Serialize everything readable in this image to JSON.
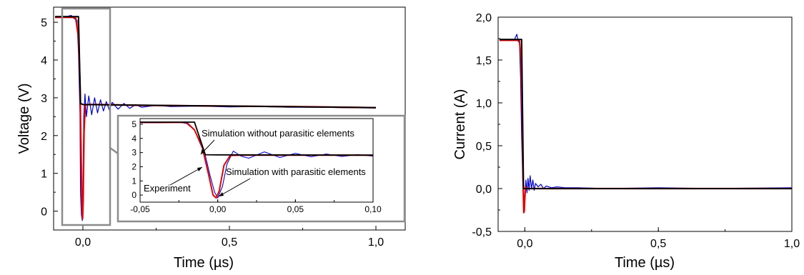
{
  "colors": {
    "experiment": "#0000cc",
    "sim_with": "#e00000",
    "sim_without": "#000000",
    "inset_frame": "#8c8c8c"
  },
  "chart_data": [
    {
      "type": "line",
      "xlabel": "Time (µs)",
      "ylabel": "Voltage (V)",
      "xlim": [
        -0.1,
        1.1
      ],
      "ylim": [
        -0.5,
        5.4
      ],
      "x_ticks": [
        {
          "v": 0,
          "label": "0,0"
        },
        {
          "v": 0.5,
          "label": "0,5"
        },
        {
          "v": 1.0,
          "label": "1,0"
        }
      ],
      "y_ticks": [
        {
          "v": 0,
          "label": "0"
        },
        {
          "v": 1,
          "label": "1"
        },
        {
          "v": 2,
          "label": "2"
        },
        {
          "v": 3,
          "label": "3"
        },
        {
          "v": 4,
          "label": "4"
        },
        {
          "v": 5,
          "label": "5"
        }
      ],
      "series": [
        {
          "key": "experiment",
          "x": [
            -0.095,
            -0.06,
            -0.04,
            -0.03,
            -0.02,
            -0.015,
            -0.01,
            -0.008,
            -0.005,
            -0.002,
            0.0,
            0.003,
            0.007,
            0.012,
            0.02,
            0.03,
            0.04,
            0.05,
            0.06,
            0.07,
            0.08,
            0.09,
            0.1,
            0.12,
            0.14,
            0.16,
            0.18,
            0.2,
            0.25,
            0.3,
            0.4,
            0.5,
            0.6,
            0.7,
            0.8,
            0.9,
            1.0
          ],
          "y": [
            5.12,
            5.14,
            5.18,
            5.1,
            5.05,
            4.2,
            2.6,
            0.5,
            -0.1,
            -0.25,
            0.4,
            2.5,
            3.1,
            2.5,
            3.05,
            2.55,
            3.0,
            2.6,
            2.95,
            2.65,
            2.9,
            2.68,
            2.88,
            2.7,
            2.85,
            2.72,
            2.82,
            2.75,
            2.8,
            2.77,
            2.78,
            2.76,
            2.77,
            2.75,
            2.75,
            2.74,
            2.73
          ]
        },
        {
          "key": "sim_with",
          "x": [
            -0.095,
            -0.025,
            -0.015,
            -0.01,
            -0.006,
            -0.003,
            -0.001,
            0.001,
            0.004,
            0.008,
            0.015,
            0.05,
            0.2,
            0.5,
            0.8,
            1.0
          ],
          "y": [
            5.13,
            5.13,
            4.6,
            3.4,
            1.5,
            0.0,
            -0.2,
            0.3,
            2.1,
            2.8,
            2.82,
            2.82,
            2.8,
            2.78,
            2.76,
            2.74
          ]
        },
        {
          "key": "sim_without",
          "x": [
            -0.095,
            -0.015,
            -0.008,
            0.0,
            0.5,
            1.0
          ],
          "y": [
            5.15,
            5.15,
            2.85,
            2.82,
            2.78,
            2.74
          ]
        }
      ],
      "inset": {
        "xlim": [
          -0.05,
          0.1
        ],
        "ylim": [
          -0.5,
          5.4
        ],
        "x_ticks": [
          {
            "v": -0.05,
            "label": "-0,05"
          },
          {
            "v": 0.0,
            "label": "0,00"
          },
          {
            "v": 0.05,
            "label": "0,05"
          },
          {
            "v": 0.1,
            "label": "0,10"
          }
        ],
        "y_ticks": [
          {
            "v": 0,
            "label": "0"
          },
          {
            "v": 1,
            "label": "1"
          },
          {
            "v": 2,
            "label": "2"
          },
          {
            "v": 3,
            "label": "3"
          },
          {
            "v": 4,
            "label": "4"
          },
          {
            "v": 5,
            "label": "5"
          }
        ],
        "series": [
          {
            "key": "experiment",
            "x": [
              -0.05,
              -0.04,
              -0.03,
              -0.025,
              -0.02,
              -0.015,
              -0.012,
              -0.008,
              -0.005,
              -0.002,
              0.0,
              0.003,
              0.006,
              0.01,
              0.015,
              0.02,
              0.03,
              0.04,
              0.05,
              0.06,
              0.07,
              0.08,
              0.09,
              0.1
            ],
            "y": [
              5.1,
              5.1,
              5.12,
              5.15,
              5.05,
              4.6,
              3.8,
              2.8,
              1.4,
              0.2,
              -0.2,
              0.6,
              2.2,
              3.1,
              2.75,
              2.6,
              3.05,
              2.65,
              2.95,
              2.7,
              2.9,
              2.72,
              2.86,
              2.75
            ]
          },
          {
            "key": "sim_with",
            "x": [
              -0.05,
              -0.02,
              -0.015,
              -0.01,
              -0.006,
              -0.003,
              -0.001,
              0.001,
              0.004,
              0.008,
              0.015,
              0.1
            ],
            "y": [
              5.13,
              5.13,
              4.6,
              3.4,
              1.5,
              0.0,
              -0.2,
              0.3,
              2.1,
              2.8,
              2.82,
              2.82
            ]
          },
          {
            "key": "sim_without",
            "x": [
              -0.05,
              -0.015,
              -0.008,
              0.0,
              0.1
            ],
            "y": [
              5.15,
              5.15,
              2.85,
              2.84,
              2.82
            ]
          }
        ]
      },
      "annotations": [
        {
          "text": "Simulation without parasitic elements"
        },
        {
          "text": "Simulation with parasitic elements"
        },
        {
          "text": "Experiment"
        }
      ]
    },
    {
      "type": "line",
      "xlabel": "Time (µs)",
      "ylabel": "Current (A)",
      "xlim": [
        -0.1,
        1.0
      ],
      "ylim": [
        -0.5,
        2.0
      ],
      "x_ticks": [
        {
          "v": 0,
          "label": "0,0"
        },
        {
          "v": 0.5,
          "label": "0,5"
        },
        {
          "v": 1.0,
          "label": "1,0"
        }
      ],
      "y_ticks": [
        {
          "v": -0.5,
          "label": "-0,5"
        },
        {
          "v": 0.0,
          "label": "0,0"
        },
        {
          "v": 0.5,
          "label": "0,5"
        },
        {
          "v": 1.0,
          "label": "1,0"
        },
        {
          "v": 1.5,
          "label": "1,5"
        },
        {
          "v": 2.0,
          "label": "2,0"
        }
      ],
      "series": [
        {
          "key": "experiment",
          "x": [
            -0.095,
            -0.06,
            -0.04,
            -0.03,
            -0.025,
            -0.02,
            -0.016,
            -0.012,
            -0.008,
            -0.005,
            -0.002,
            0.0,
            0.004,
            0.008,
            0.012,
            0.016,
            0.02,
            0.025,
            0.03,
            0.035,
            0.04,
            0.05,
            0.06,
            0.07,
            0.08,
            0.1,
            0.12,
            0.15,
            0.2,
            0.3,
            0.5,
            0.7,
            1.0
          ],
          "y": [
            1.74,
            1.74,
            1.73,
            1.8,
            1.72,
            1.7,
            1.3,
            0.6,
            0.1,
            -0.15,
            -0.2,
            -0.1,
            0.1,
            -0.05,
            0.12,
            -0.02,
            0.15,
            0.0,
            0.1,
            -0.02,
            0.06,
            0.02,
            0.05,
            0.0,
            0.03,
            0.01,
            0.02,
            0.01,
            0.01,
            0.0,
            0.01,
            0.0,
            0.01
          ]
        },
        {
          "key": "sim_with",
          "x": [
            -0.095,
            -0.02,
            -0.014,
            -0.009,
            -0.006,
            -0.004,
            -0.002,
            0.0,
            0.003,
            0.007,
            0.015,
            1.0
          ],
          "y": [
            1.73,
            1.73,
            1.5,
            0.7,
            0.0,
            -0.28,
            -0.26,
            -0.1,
            0.02,
            0.0,
            0.0,
            0.0
          ]
        },
        {
          "key": "sim_without",
          "x": [
            -0.095,
            -0.012,
            -0.005,
            1.0
          ],
          "y": [
            1.74,
            1.74,
            0.0,
            0.0
          ]
        }
      ]
    }
  ]
}
